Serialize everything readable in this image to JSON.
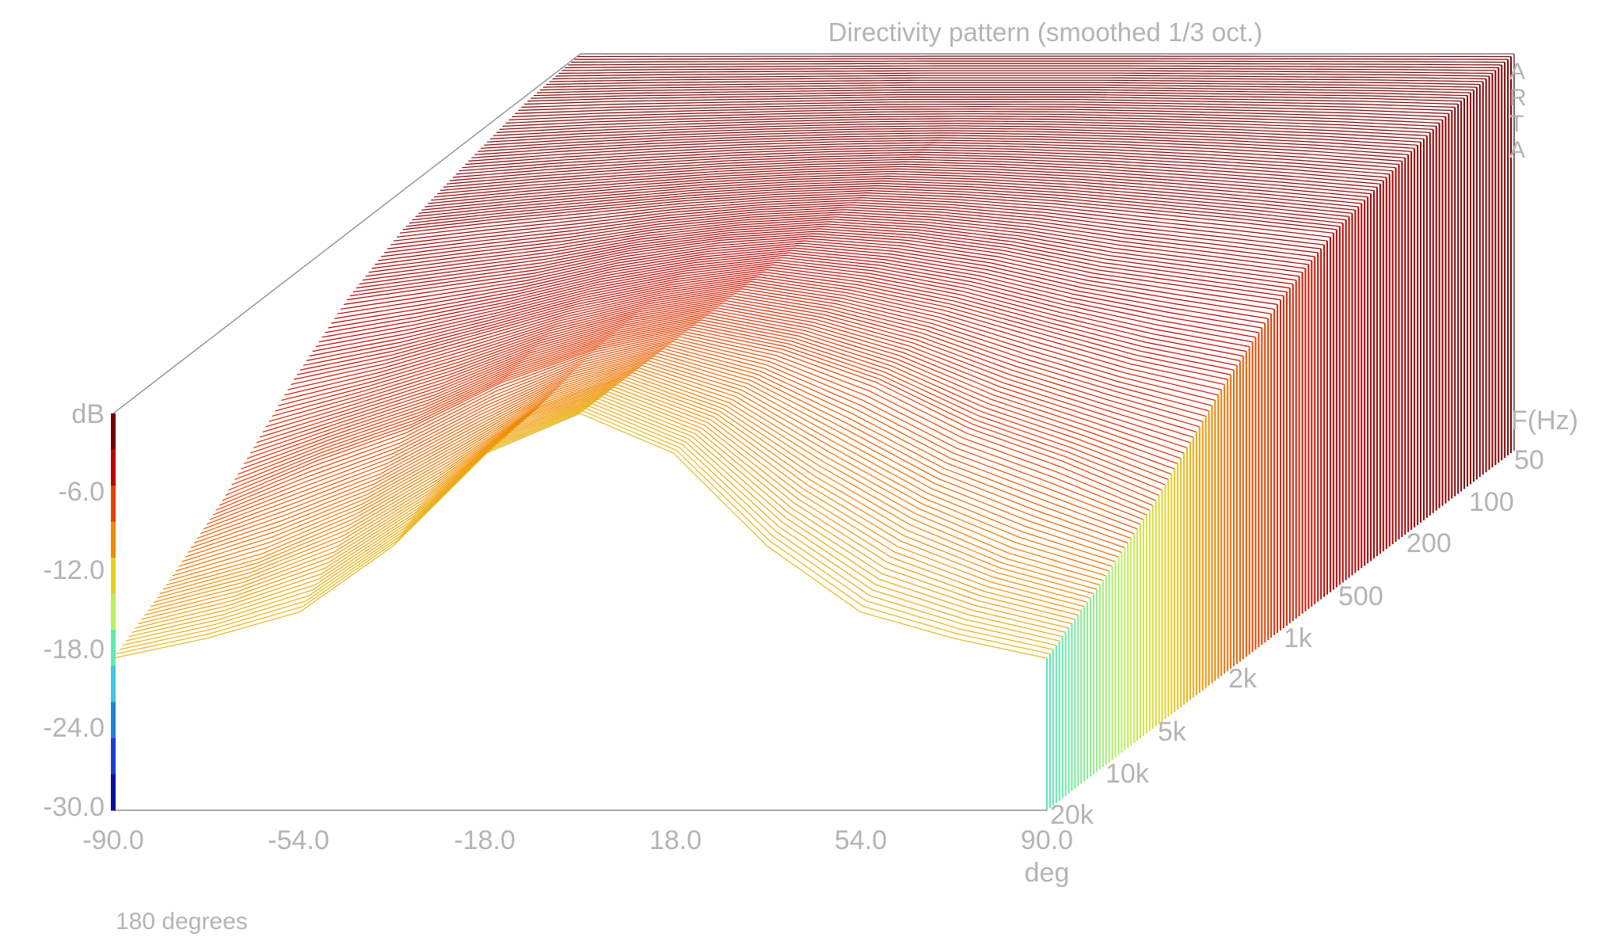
{
  "chart_data": {
    "type": "waterfall-3d",
    "title": "Directivity pattern (smoothed 1/3 oct.)",
    "brand": [
      "A",
      "R",
      "T",
      "A"
    ],
    "footer": "180 degrees",
    "z_axis": {
      "label": "dB",
      "ticks": [
        "-6.0",
        "-12.0",
        "-18.0",
        "-24.0",
        "-30.0"
      ],
      "range": [
        -30,
        0
      ],
      "colorbar": [
        "#7a0000",
        "#c00000",
        "#e84000",
        "#f08a00",
        "#e8d020",
        "#b8f060",
        "#60e8b0",
        "#40c8e0",
        "#2080d8",
        "#1a3fd0",
        "#0a10a0"
      ]
    },
    "x_axis": {
      "label": "deg",
      "ticks": [
        "-90.0",
        "-54.0",
        "-18.0",
        "18.0",
        "54.0",
        "90.0"
      ],
      "range": [
        -90,
        90
      ]
    },
    "y_axis": {
      "label": "F(Hz)",
      "ticks": [
        "50",
        "100",
        "200",
        "500",
        "1k",
        "2k",
        "5k",
        "10k",
        "20k"
      ],
      "range_hz": [
        50,
        20000
      ],
      "scale": "log"
    },
    "angles_deg": [
      -90,
      -72,
      -54,
      -36,
      -18,
      0,
      18,
      36,
      54,
      72,
      90
    ],
    "frequencies_hz": [
      50,
      100,
      200,
      500,
      1000,
      2000,
      5000,
      10000,
      20000
    ],
    "series": [
      {
        "values": [
          0,
          0,
          0,
          0,
          0,
          0,
          0,
          0,
          0,
          0,
          0
        ]
      },
      {
        "values": [
          -0.5,
          -0.3,
          -0.2,
          -0.1,
          0,
          0,
          0,
          -0.1,
          -0.2,
          -0.3,
          -0.5
        ]
      },
      {
        "values": [
          -1.5,
          -1.0,
          -0.6,
          -0.3,
          -0.1,
          0,
          -0.1,
          -0.3,
          -0.6,
          -1.0,
          -1.5
        ]
      },
      {
        "values": [
          -3,
          -2.2,
          -1.5,
          -0.8,
          -0.3,
          0,
          -0.3,
          -0.8,
          -1.5,
          -2.2,
          -3
        ]
      },
      {
        "values": [
          -5,
          -4,
          -3,
          -1.5,
          -0.5,
          0,
          -0.5,
          -1.5,
          -3,
          -4,
          -5
        ]
      },
      {
        "values": [
          -8,
          -6.5,
          -4.5,
          -2.5,
          -1,
          0,
          -1,
          -2.5,
          -4.5,
          -6.5,
          -8
        ]
      },
      {
        "values": [
          -13,
          -10,
          -7.5,
          -4,
          -1.5,
          0,
          -1.5,
          -4,
          -7.5,
          -10,
          -13
        ]
      },
      {
        "values": [
          -16,
          -14,
          -11,
          -7,
          -2.5,
          0,
          -2.5,
          -7,
          -11,
          -14,
          -16
        ]
      },
      {
        "values": [
          -18.5,
          -17,
          -15,
          -10,
          -3,
          0,
          -3,
          -10,
          -15,
          -17,
          -18.5
        ]
      }
    ]
  }
}
